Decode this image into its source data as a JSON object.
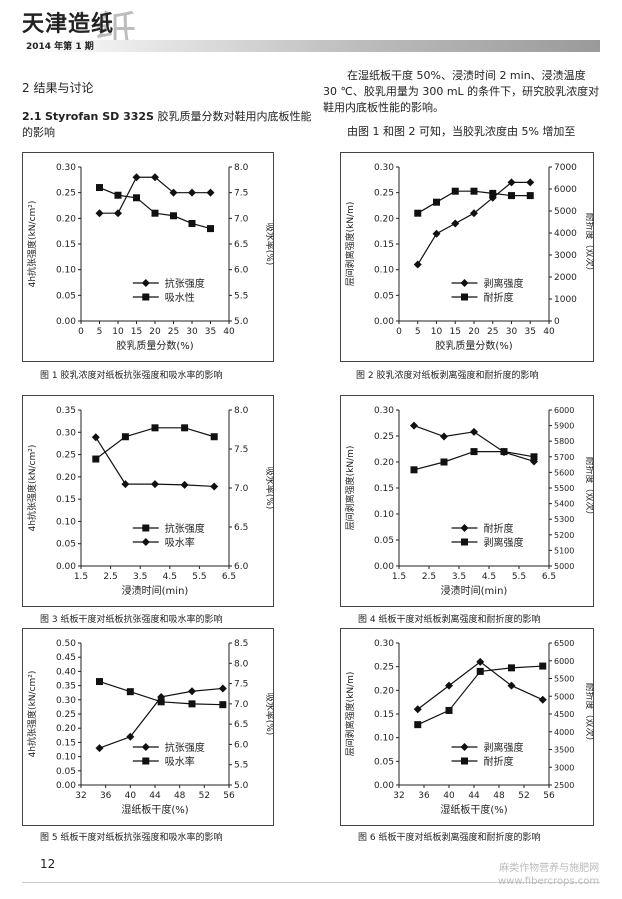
{
  "header": {
    "journal": "天津造纸",
    "big_glyph": "纸",
    "issue": "2014 年第 1 期"
  },
  "section": {
    "heading_no": "2",
    "heading": "结果与讨论",
    "sub_no": "2.1",
    "sub_title_latin": "Styrofan SD 332S",
    "sub_title_cn": "胶乳质量分数对鞋用内底板性能的影响"
  },
  "body": {
    "para1": "在湿纸板干度 50%、浸渍时间 2 min、浸渍温度 30 ℃、胶乳用量为 300 mL 的条件下，研究胶乳浓度对鞋用内底板性能的影响。",
    "para2": "由图 1 和图 2 可知，当胶乳浓度由 5% 增加至"
  },
  "chart_data": [
    {
      "type": "line",
      "title": "",
      "caption": "图 1 胶乳浓度对纸板抗张强度和吸水率的影响",
      "xlabel": "胶乳质量分数(%)",
      "ylabel_left": "4h抗张强度(kN/cm²)",
      "ylabel_right": "吸水率(%)",
      "xlim": [
        0,
        40
      ],
      "xticks": [
        0,
        5,
        10,
        15,
        20,
        25,
        30,
        35,
        40
      ],
      "ylim_left": [
        0,
        0.3
      ],
      "yticks_left": [
        "0.00",
        "0.05",
        "0.10",
        "0.15",
        "0.20",
        "0.25",
        "0.30"
      ],
      "ylim_right": [
        5.0,
        8.0
      ],
      "yticks_right": [
        "5.0",
        "5.5",
        "6.0",
        "6.5",
        "7.0",
        "7.5",
        "8.0"
      ],
      "legend": "bottom-center",
      "series": [
        {
          "name": "抗张强度",
          "marker": "diamond",
          "axis": "left",
          "x": [
            5,
            10,
            15,
            20,
            25,
            30,
            35
          ],
          "y": [
            0.21,
            0.21,
            0.28,
            0.28,
            0.25,
            0.25,
            0.25
          ]
        },
        {
          "name": "吸水性",
          "marker": "square",
          "axis": "right",
          "x": [
            5,
            10,
            15,
            20,
            25,
            30,
            35
          ],
          "y": [
            7.6,
            7.45,
            7.4,
            7.1,
            7.05,
            6.9,
            6.8
          ]
        }
      ]
    },
    {
      "type": "line",
      "title": "",
      "caption": "图 2 胶乳浓度对纸板剥离强度和耐折度的影响",
      "xlabel": "胶乳质量分数(%)",
      "ylabel_left": "层间剥离强度(kN/m)",
      "ylabel_right": "耐折度（双次）",
      "xlim": [
        0,
        40
      ],
      "xticks": [
        0,
        5,
        10,
        15,
        20,
        25,
        30,
        35,
        40
      ],
      "ylim_left": [
        0,
        0.3
      ],
      "yticks_left": [
        "0.00",
        "0.05",
        "0.10",
        "0.15",
        "0.20",
        "0.25",
        "0.30"
      ],
      "ylim_right": [
        0,
        7000
      ],
      "yticks_right": [
        "0",
        "1000",
        "2000",
        "3000",
        "4000",
        "5000",
        "6000",
        "7000"
      ],
      "legend": "bottom-center",
      "series": [
        {
          "name": "剥离强度",
          "marker": "diamond",
          "axis": "left",
          "x": [
            5,
            10,
            15,
            20,
            25,
            30,
            35
          ],
          "y": [
            0.11,
            0.17,
            0.19,
            0.21,
            0.24,
            0.27,
            0.27
          ]
        },
        {
          "name": "耐折度",
          "marker": "square",
          "axis": "right",
          "x": [
            5,
            10,
            15,
            20,
            25,
            30,
            35
          ],
          "y": [
            4900,
            5400,
            5900,
            5900,
            5800,
            5700,
            5700
          ]
        }
      ]
    },
    {
      "type": "line",
      "title": "",
      "caption": "图 3 纸板干度对纸板抗张强度和吸水率的影响",
      "xlabel": "浸渍时间(min)",
      "ylabel_left": "4h抗张强度(kN/cm²)",
      "ylabel_right": "吸水率(%)",
      "xlim": [
        1.5,
        6.5
      ],
      "xticks": [
        "1.5",
        "2.5",
        "3.5",
        "4.5",
        "5.5",
        "6.5"
      ],
      "xtick_values": [
        1.5,
        2.5,
        3.5,
        4.5,
        5.5,
        6.5
      ],
      "ylim_left": [
        0,
        0.35
      ],
      "yticks_left": [
        "0.00",
        "0.05",
        "0.10",
        "0.15",
        "0.20",
        "0.25",
        "0.30",
        "0.35"
      ],
      "ylim_right": [
        6.0,
        8.0
      ],
      "yticks_right": [
        "6.0",
        "6.5",
        "7.0",
        "7.5",
        "8.0"
      ],
      "legend": "bottom-center",
      "series": [
        {
          "name": "抗张强度",
          "marker": "square",
          "axis": "left",
          "x": [
            2,
            3,
            4,
            5,
            6
          ],
          "y": [
            0.24,
            0.29,
            0.31,
            0.31,
            0.29
          ]
        },
        {
          "name": "吸水率",
          "marker": "diamond",
          "axis": "right",
          "x": [
            2,
            3,
            4,
            5,
            6
          ],
          "y": [
            7.65,
            7.05,
            7.05,
            7.04,
            7.02
          ]
        }
      ]
    },
    {
      "type": "line",
      "title": "",
      "caption": "图 4 纸板干度对纸板剥离强度和耐折度的影响",
      "xlabel": "浸渍时间(min)",
      "ylabel_left": "层间剥离强度(kN/m)",
      "ylabel_right": "耐折度（双次）",
      "xlim": [
        1.5,
        6.5
      ],
      "xticks": [
        "1.5",
        "2.5",
        "3.5",
        "4.5",
        "5.5",
        "6.5"
      ],
      "xtick_values": [
        1.5,
        2.5,
        3.5,
        4.5,
        5.5,
        6.5
      ],
      "ylim_left": [
        0,
        0.3
      ],
      "yticks_left": [
        "0.00",
        "0.05",
        "0.10",
        "0.15",
        "0.20",
        "0.25",
        "0.30"
      ],
      "ylim_right": [
        5000,
        6000
      ],
      "yticks_right": [
        "5000",
        "5100",
        "5200",
        "5300",
        "5400",
        "5500",
        "5600",
        "5700",
        "5800",
        "5900",
        "6000"
      ],
      "legend": "bottom-center",
      "series": [
        {
          "name": "耐折度",
          "marker": "diamond",
          "axis": "right",
          "x": [
            2,
            3,
            4,
            5,
            6
          ],
          "y": [
            5900,
            5830,
            5860,
            5730,
            5670
          ]
        },
        {
          "name": "剥离强度",
          "marker": "square",
          "axis": "left",
          "x": [
            2,
            3,
            4,
            5,
            6
          ],
          "y": [
            0.185,
            0.2,
            0.22,
            0.22,
            0.21
          ]
        }
      ]
    },
    {
      "type": "line",
      "title": "",
      "caption": "图 5 纸板干度对纸板抗张强度和吸水率的影响",
      "xlabel": "湿纸板干度(%)",
      "ylabel_left": "4h抗张强度(kN/cm²)",
      "ylabel_right": "吸水率(%)",
      "xlim": [
        32,
        56
      ],
      "xticks": [
        32,
        36,
        40,
        44,
        48,
        52,
        56
      ],
      "ylim_left": [
        0,
        0.5
      ],
      "yticks_left": [
        "0.00",
        "0.05",
        "0.10",
        "0.15",
        "0.20",
        "0.25",
        "0.30",
        "0.35",
        "0.40",
        "0.45",
        "0.50"
      ],
      "ylim_right": [
        5.0,
        8.5
      ],
      "yticks_right": [
        "5.0",
        "5.5",
        "6.0",
        "6.5",
        "7.0",
        "7.5",
        "8.0",
        "8.5"
      ],
      "legend": "bottom-center",
      "series": [
        {
          "name": "抗张强度",
          "marker": "diamond",
          "axis": "left",
          "x": [
            35,
            40,
            45,
            50,
            55
          ],
          "y": [
            0.13,
            0.17,
            0.31,
            0.33,
            0.34
          ]
        },
        {
          "name": "吸水率",
          "marker": "square",
          "axis": "right",
          "x": [
            35,
            40,
            45,
            50,
            55
          ],
          "y": [
            7.55,
            7.3,
            7.05,
            7.0,
            6.98
          ]
        }
      ]
    },
    {
      "type": "line",
      "title": "",
      "caption": "图 6 纸板干度对纸板剥离强度和耐折度的影响",
      "xlabel": "湿纸板干度(%)",
      "ylabel_left": "层间剥离强度(kN/m)",
      "ylabel_right": "耐折度（双次）",
      "xlim": [
        32,
        56
      ],
      "xticks": [
        32,
        36,
        40,
        44,
        48,
        52,
        56
      ],
      "ylim_left": [
        0,
        0.3
      ],
      "yticks_left": [
        "0.00",
        "0.05",
        "0.10",
        "0.15",
        "0.20",
        "0.25",
        "0.30"
      ],
      "ylim_right": [
        2500,
        6500
      ],
      "yticks_right": [
        "2500",
        "3000",
        "3500",
        "4000",
        "4500",
        "5000",
        "5500",
        "6000",
        "6500"
      ],
      "legend": "bottom-center",
      "series": [
        {
          "name": "剥离强度",
          "marker": "diamond",
          "axis": "left",
          "x": [
            35,
            40,
            45,
            50,
            55
          ],
          "y": [
            0.16,
            0.21,
            0.26,
            0.21,
            0.18
          ]
        },
        {
          "name": "耐折度",
          "marker": "square",
          "axis": "right",
          "x": [
            35,
            40,
            45,
            50,
            55
          ],
          "y": [
            4200,
            4600,
            5700,
            5800,
            5850
          ]
        }
      ]
    }
  ],
  "page_number": "12",
  "watermark": {
    "line1": "麻类作物营养与施肥网",
    "line2": "www.fibercrops.com"
  }
}
